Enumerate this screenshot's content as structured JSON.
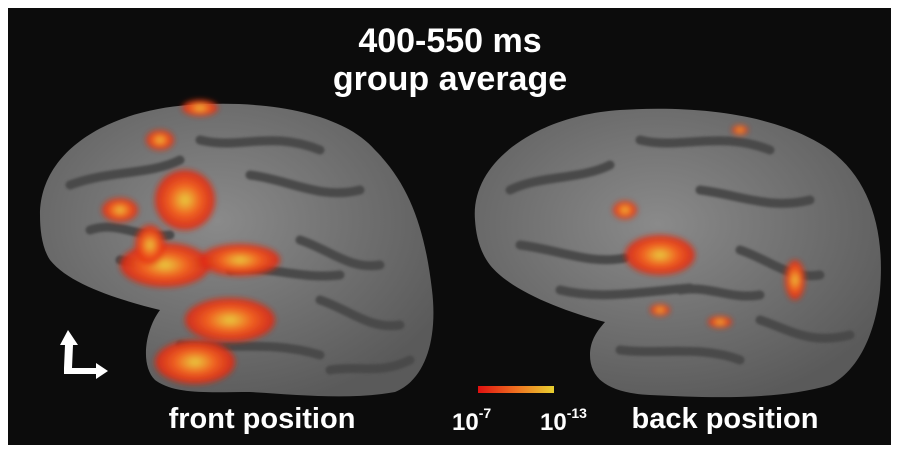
{
  "title": {
    "line1": "400-550 ms",
    "line2": "group average"
  },
  "panels": [
    {
      "label": "front position"
    },
    {
      "label": "back position"
    }
  ],
  "colorbar": {
    "min_label": {
      "base": "10",
      "exponent": "-7"
    },
    "max_label": {
      "base": "10",
      "exponent": "-13"
    }
  }
}
